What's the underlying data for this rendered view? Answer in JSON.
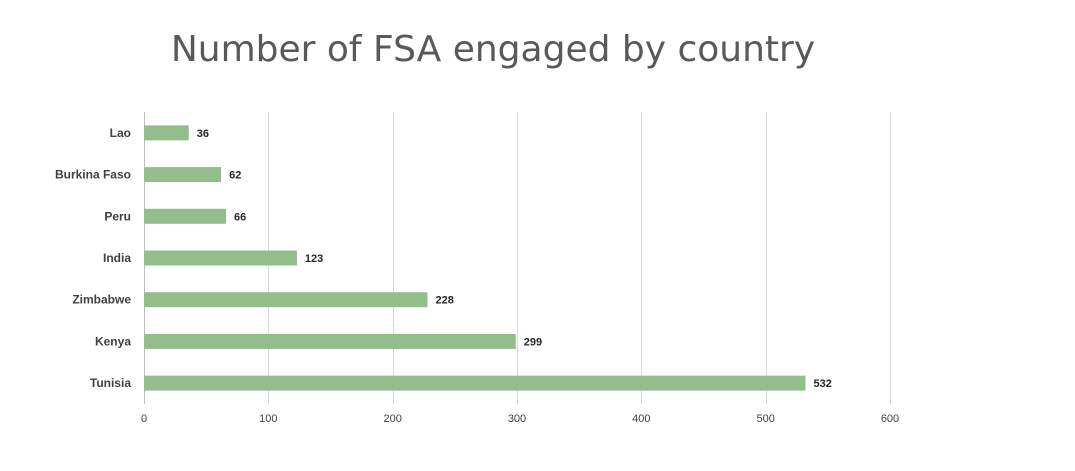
{
  "chart_data": {
    "type": "bar",
    "orientation": "horizontal",
    "title": "Number of FSA engaged by country",
    "xlabel": "",
    "ylabel": "",
    "categories": [
      "Lao",
      "Burkina Faso",
      "Peru",
      "India",
      "Zimbabwe",
      "Kenya",
      "Tunisia"
    ],
    "values": [
      36,
      62,
      66,
      123,
      228,
      299,
      532
    ],
    "xlim": [
      0,
      600
    ],
    "x_ticks": [
      0,
      100,
      200,
      300,
      400,
      500,
      600
    ],
    "grid": "vertical",
    "data_labels": true,
    "legend": "none",
    "bar_color": "#93BD8B"
  }
}
